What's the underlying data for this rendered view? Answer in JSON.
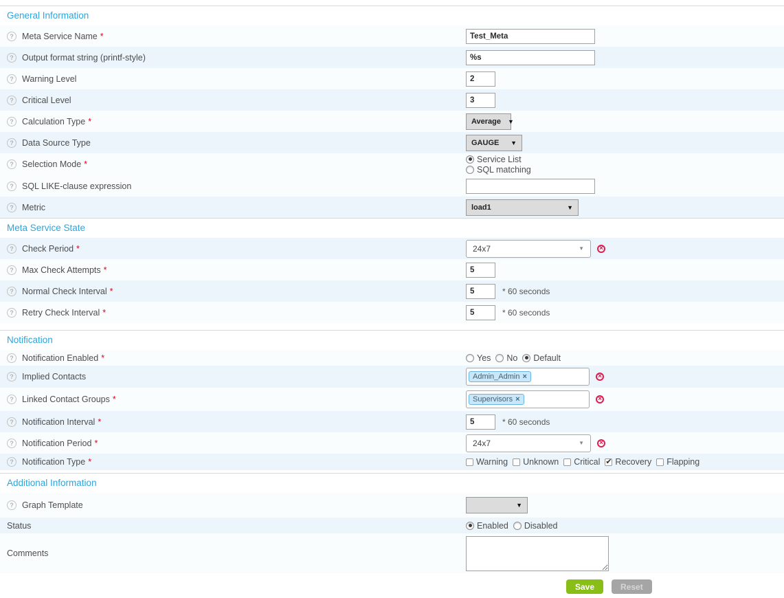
{
  "ui": {
    "required_marker": "*",
    "help_glyph": "?",
    "caret": "▼",
    "tag_remove": "×",
    "deselect_glyph": "×",
    "seconds_suffix": "* 60 seconds"
  },
  "colors": {
    "section_title": "#2ba6dc",
    "row_light": "#fafdfe",
    "row_dark": "#ebf5fb",
    "required": "#e00020",
    "save_button": "#88be16",
    "reset_button": "#a5a5a5",
    "tag_bg": "#c9e7f8",
    "tag_border": "#66b6e4",
    "deselect_icon": "#e01e50"
  },
  "sections": {
    "general": {
      "title": "General Information",
      "meta_name": {
        "label": "Meta Service Name",
        "value": "Test_Meta"
      },
      "output_format": {
        "label": "Output format string (printf-style)",
        "value": "%s"
      },
      "warning_level": {
        "label": "Warning Level",
        "value": "2"
      },
      "critical_level": {
        "label": "Critical Level",
        "value": "3"
      },
      "calculation_type": {
        "label": "Calculation Type",
        "value": "Average"
      },
      "data_source_type": {
        "label": "Data Source Type",
        "value": "GAUGE"
      },
      "selection_mode": {
        "label": "Selection Mode",
        "option_service_list": "Service List",
        "option_sql_matching": "SQL matching",
        "selected": "Service List"
      },
      "sql_like": {
        "label": "SQL LIKE-clause expression",
        "value": ""
      },
      "metric": {
        "label": "Metric",
        "value": "load1"
      }
    },
    "meta_service_state": {
      "title": "Meta Service State",
      "check_period": {
        "label": "Check Period",
        "value": "24x7"
      },
      "max_check_attempts": {
        "label": "Max Check Attempts",
        "value": "5"
      },
      "normal_check_interval": {
        "label": "Normal Check Interval",
        "value": "5"
      },
      "retry_check_interval": {
        "label": "Retry Check Interval",
        "value": "5"
      }
    },
    "notification": {
      "title": "Notification",
      "notification_enabled": {
        "label": "Notification Enabled",
        "option_yes": "Yes",
        "option_no": "No",
        "option_default": "Default",
        "selected": "Default"
      },
      "implied_contacts": {
        "label": "Implied Contacts",
        "tags": [
          "Admin_Admin"
        ]
      },
      "linked_contact_groups": {
        "label": "Linked Contact Groups",
        "tags": [
          "Supervisors"
        ]
      },
      "notification_interval": {
        "label": "Notification Interval",
        "value": "5"
      },
      "notification_period": {
        "label": "Notification Period",
        "value": "24x7"
      },
      "notification_type": {
        "label": "Notification Type",
        "options": [
          "Warning",
          "Unknown",
          "Critical",
          "Recovery",
          "Flapping"
        ],
        "checked": [
          "Recovery"
        ]
      }
    },
    "additional": {
      "title": "Additional Information",
      "graph_template": {
        "label": "Graph Template",
        "value": ""
      },
      "status": {
        "label": "Status",
        "option_enabled": "Enabled",
        "option_disabled": "Disabled",
        "selected": "Enabled"
      },
      "comments": {
        "label": "Comments",
        "value": ""
      }
    }
  },
  "buttons": {
    "save": "Save",
    "reset": "Reset"
  }
}
